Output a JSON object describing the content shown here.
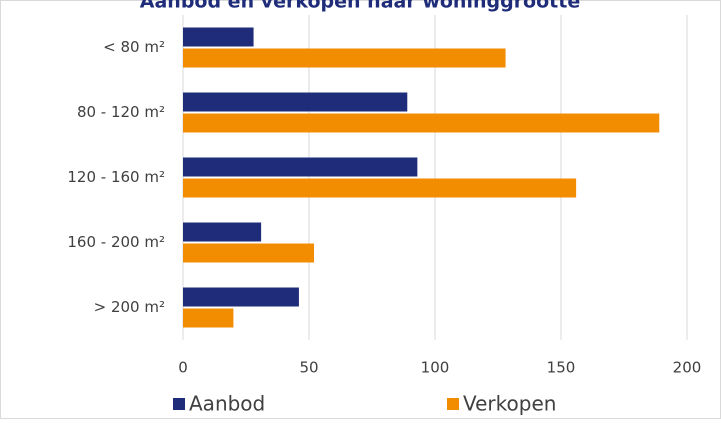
{
  "chart_data": {
    "type": "barh",
    "title": "Aanbod en verkopen naar woninggrootte",
    "categories": [
      "< 80 m²",
      "80 - 120 m²",
      "120 - 160 m²",
      "160 - 200 m²",
      "> 200 m²"
    ],
    "series": [
      {
        "name": "Aanbod",
        "color": "#1f2c7a",
        "values": [
          28,
          89,
          93,
          31,
          46
        ]
      },
      {
        "name": "Verkopen",
        "color": "#f28c00",
        "values": [
          128,
          189,
          156,
          52,
          20
        ]
      }
    ],
    "xlim": [
      0,
      200
    ],
    "xticks": [
      0,
      50,
      100,
      150,
      200
    ],
    "grid": true,
    "legend": "bottom"
  }
}
